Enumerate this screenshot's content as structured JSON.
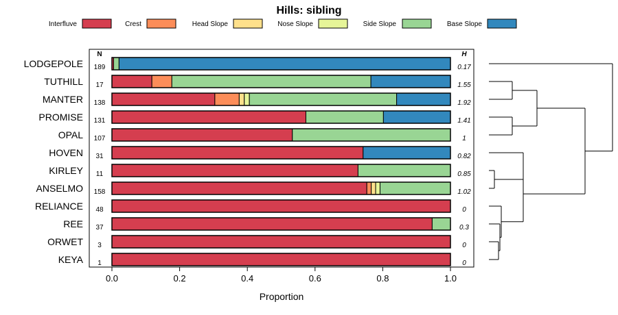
{
  "chart_data": {
    "type": "bar",
    "orientation": "horizontal-stacked",
    "title": "Hills: sibling",
    "xlabel": "Proportion",
    "xlim": [
      0,
      1
    ],
    "x_ticks": [
      "0.0",
      "0.2",
      "0.4",
      "0.6",
      "0.8",
      "1.0"
    ],
    "n_header": "N",
    "h_header": "H",
    "series": [
      {
        "name": "Interfluve",
        "color": "#d53e4f"
      },
      {
        "name": "Crest",
        "color": "#fc8d59"
      },
      {
        "name": "Head Slope",
        "color": "#fee08b"
      },
      {
        "name": "Nose Slope",
        "color": "#e6f598"
      },
      {
        "name": "Side Slope",
        "color": "#99d594"
      },
      {
        "name": "Base Slope",
        "color": "#3288bd"
      }
    ],
    "rows": [
      {
        "name": "LODGEPOLE",
        "n": "189",
        "h": "0.17",
        "values": [
          0.005,
          0.0,
          0.0,
          0.0,
          0.016,
          0.979
        ]
      },
      {
        "name": "TUTHILL",
        "n": "17",
        "h": "1.55",
        "values": [
          0.118,
          0.059,
          0.0,
          0.0,
          0.588,
          0.235
        ]
      },
      {
        "name": "MANTER",
        "n": "138",
        "h": "1.92",
        "values": [
          0.304,
          0.072,
          0.015,
          0.015,
          0.435,
          0.159
        ]
      },
      {
        "name": "PROMISE",
        "n": "131",
        "h": "1.41",
        "values": [
          0.573,
          0.0,
          0.0,
          0.0,
          0.229,
          0.198
        ]
      },
      {
        "name": "OPAL",
        "n": "107",
        "h": "1",
        "values": [
          0.533,
          0.0,
          0.0,
          0.0,
          0.467,
          0.0
        ]
      },
      {
        "name": "HOVEN",
        "n": "31",
        "h": "0.82",
        "values": [
          0.742,
          0.0,
          0.0,
          0.0,
          0.0,
          0.258
        ]
      },
      {
        "name": "KIRLEY",
        "n": "11",
        "h": "0.85",
        "values": [
          0.727,
          0.0,
          0.0,
          0.0,
          0.273,
          0.0
        ]
      },
      {
        "name": "ANSELMO",
        "n": "158",
        "h": "1.02",
        "values": [
          0.753,
          0.013,
          0.013,
          0.013,
          0.208,
          0.0
        ]
      },
      {
        "name": "RELIANCE",
        "n": "48",
        "h": "0",
        "values": [
          1.0,
          0.0,
          0.0,
          0.0,
          0.0,
          0.0
        ]
      },
      {
        "name": "REE",
        "n": "37",
        "h": "0.3",
        "values": [
          0.946,
          0.0,
          0.0,
          0.0,
          0.054,
          0.0
        ]
      },
      {
        "name": "ORWET",
        "n": "3",
        "h": "0",
        "values": [
          1.0,
          0.0,
          0.0,
          0.0,
          0.0,
          0.0
        ]
      },
      {
        "name": "KEYA",
        "n": "1",
        "h": "0",
        "values": [
          1.0,
          0.0,
          0.0,
          0.0,
          0.0,
          0.0
        ]
      }
    ],
    "dendrogram": {
      "description": "hierarchical clustering of series, leaves in row order",
      "merges": [
        {
          "left": "TUTHILL",
          "right": "MANTER",
          "height": 0.17
        },
        {
          "left": "PROMISE",
          "right": "OPAL",
          "height": 0.17
        },
        {
          "left": "m0",
          "right": "m1",
          "height": 0.35
        },
        {
          "left": "ORWET",
          "right": "KEYA",
          "height": 0.07
        },
        {
          "left": "REE",
          "right": "m3",
          "height": 0.08
        },
        {
          "left": "RELIANCE",
          "right": "m4",
          "height": 0.09
        },
        {
          "left": "KIRLEY",
          "right": "ANSELMO",
          "height": 0.04
        },
        {
          "left": "HOVEN",
          "right": "m6",
          "height": 0.25
        },
        {
          "left": "m7",
          "right": "m5",
          "height": 0.25
        },
        {
          "left": "m2",
          "right": "m8",
          "height": 0.7
        },
        {
          "left": "LODGEPOLE",
          "right": "m9",
          "height": 0.9
        }
      ]
    }
  }
}
